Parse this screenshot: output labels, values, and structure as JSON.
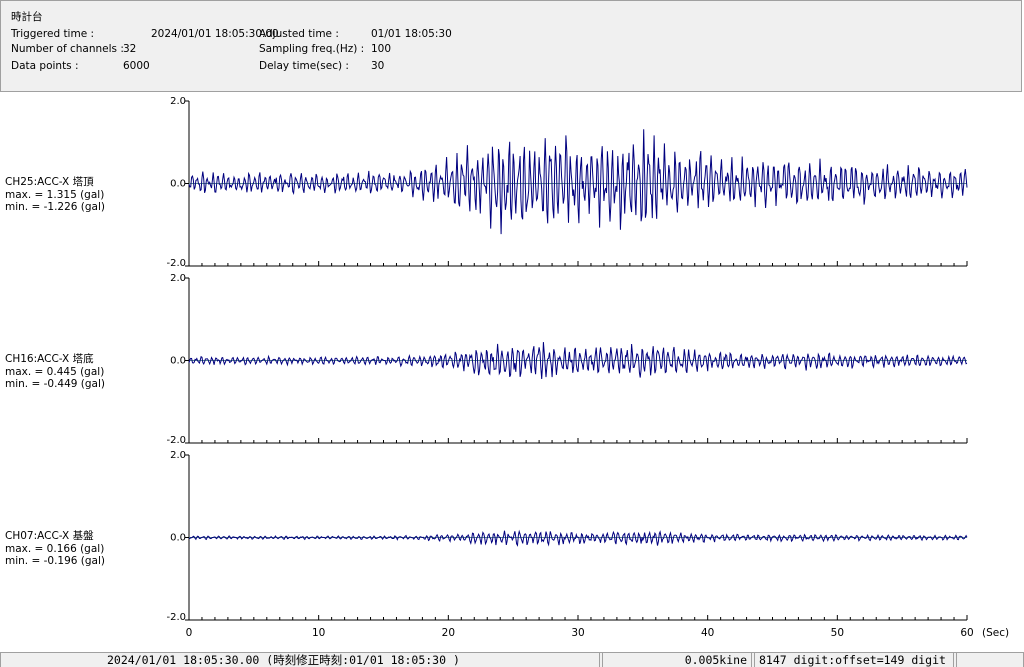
{
  "header": {
    "title": "時計台",
    "triggered_label": "Triggered time :",
    "triggered_value": "2024/01/01 18:05:30.00",
    "channels_label": "Number of channels :",
    "channels_value": "32",
    "datapoints_label": "Data points :",
    "datapoints_value": "6000",
    "adjusted_label": "Adjusted time :",
    "adjusted_value": "01/01 18:05:30",
    "sampling_label": "Sampling freq.(Hz) :",
    "sampling_value": "100",
    "delay_label": "Delay time(sec) :",
    "delay_value": "30"
  },
  "chart_data": {
    "type": "line",
    "x_range": [
      0,
      60
    ],
    "x_ticks": [
      "0",
      "10",
      "20",
      "30",
      "40",
      "50",
      "60"
    ],
    "x_unit": "(Sec)",
    "colors": {
      "trace": "#00007f",
      "axis": "#000000",
      "baseline": "#5a8a8a"
    },
    "panels": [
      {
        "name": "CH25:ACC-X 塔頂",
        "max": "max. = 1.315 (gal)",
        "min": "min. = -1.226 (gal)",
        "ylim": [
          -2.0,
          2.0
        ],
        "y_ticks": [
          "2.0",
          "0.0",
          "-2.0"
        ],
        "peak_max": 1.315,
        "peak_min": -1.226
      },
      {
        "name": "CH16:ACC-X 塔底",
        "max": "max. = 0.445 (gal)",
        "min": "min. = -0.449 (gal)",
        "ylim": [
          -2.0,
          2.0
        ],
        "y_ticks": [
          "2.0",
          "0.0",
          "-2.0"
        ],
        "peak_max": 0.445,
        "peak_min": -0.449
      },
      {
        "name": "CH07:ACC-X 基盤",
        "max": "max. = 0.166 (gal)",
        "min": "min. = -0.196 (gal)",
        "ylim": [
          -2.0,
          2.0
        ],
        "y_ticks": [
          "2.0",
          "0.0",
          "-2.0"
        ],
        "peak_max": 0.166,
        "peak_min": -0.196
      }
    ]
  },
  "status": {
    "time": "2024/01/01 18:05:30.00 (時刻修正時刻:01/01 18:05:30 )",
    "resolution": "0.005kine",
    "digit": "8147 digit:offset=149 digit"
  }
}
